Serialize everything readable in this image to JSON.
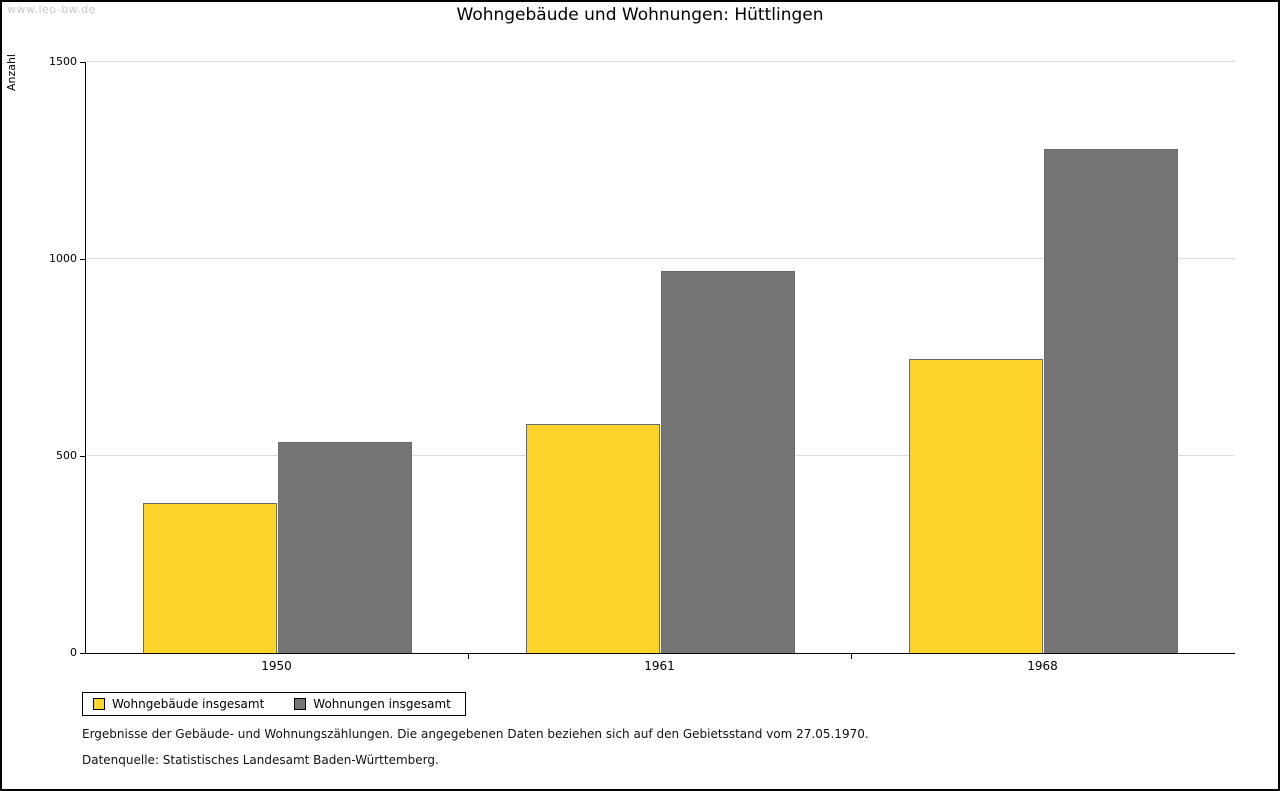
{
  "watermark": "www.leo-bw.de",
  "title": "Wohngebäude und Wohnungen: Hüttlingen",
  "footnotes": {
    "line1": "Ergebnisse der Gebäude- und Wohnungszählungen. Die angegebenen Daten beziehen sich auf den Gebietsstand vom 27.05.1970.",
    "line2": "Datenquelle: Statistisches Landesamt Baden-Württemberg."
  },
  "chart_data": {
    "type": "bar",
    "title": "Wohngebäude und Wohnungen: Hüttlingen",
    "xlabel": "",
    "ylabel": "Anzahl",
    "categories": [
      "1950",
      "1961",
      "1968"
    ],
    "series": [
      {
        "name": "Wohngebäude insgesamt",
        "color": "#FCD42A",
        "values": [
          380,
          580,
          745
        ]
      },
      {
        "name": "Wohnungen insgesamt",
        "color": "#757575",
        "values": [
          535,
          970,
          1280
        ]
      }
    ],
    "ylim": [
      0,
      1500
    ],
    "yticks": [
      0,
      500,
      1000,
      1500
    ],
    "grid": true,
    "legend_position": "bottom-left"
  }
}
